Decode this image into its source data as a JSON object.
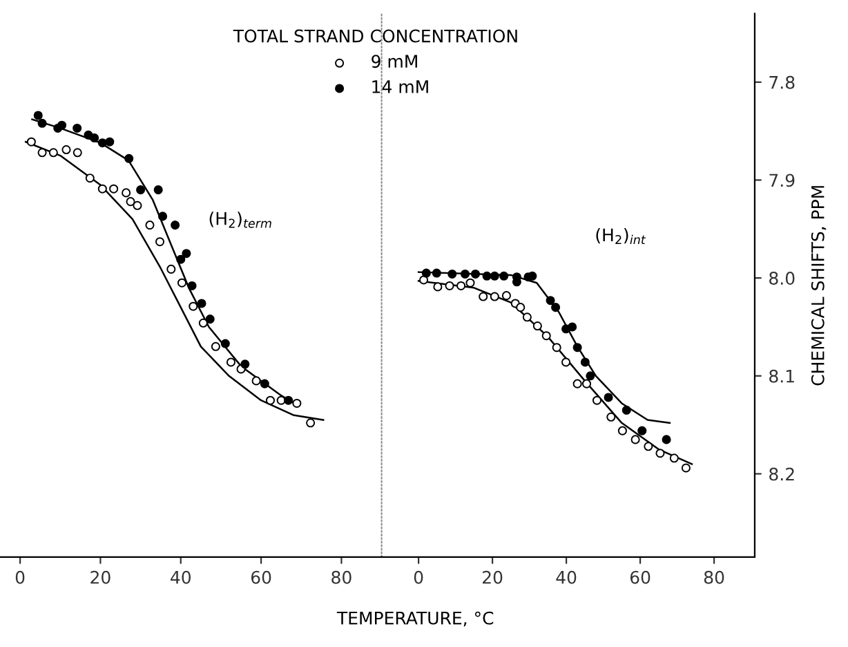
{
  "chart_data": [
    {
      "type": "scatter",
      "xlabel": "TEMPERATURE, °C",
      "legend_title": "TOTAL STRAND CONCENTRATION",
      "legend": "top right",
      "marker": "circle",
      "tick_labels": "x",
      "xlim": [
        -5,
        90
      ],
      "xticks": [
        0,
        20,
        40,
        60,
        80
      ],
      "ylim": [
        8.285,
        7.73
      ],
      "yticks": [
        7.8,
        7.9,
        8.0,
        8.1,
        8.2
      ],
      "annotations": [
        "(H$_{2}$)$_{term}$"
      ],
      "series": [
        {
          "name": "9 mM",
          "color": "#ffffff",
          "x": [
            2.8,
            5.5,
            8.3,
            11.5,
            14.3,
            17.4,
            20.5,
            23.3,
            26.4,
            27.5,
            29.2,
            32.3,
            34.8,
            37.6,
            40.3,
            43.1,
            45.6,
            48.7,
            52.5,
            55,
            58.8,
            62.3,
            65,
            68.9,
            72.3
          ],
          "values": [
            7.861,
            7.872,
            7.872,
            7.869,
            7.872,
            7.898,
            7.909,
            7.909,
            7.913,
            7.922,
            7.926,
            7.946,
            7.963,
            7.991,
            8.005,
            8.029,
            8.046,
            8.07,
            8.086,
            8.093,
            8.105,
            8.125,
            8.125,
            8.128,
            8.148
          ]
        },
        {
          "name": "14 mM",
          "color": "#000000",
          "x": [
            4.5,
            5.5,
            9.4,
            10.4,
            14.2,
            17,
            18.5,
            20.5,
            22.3,
            27.1,
            30,
            34.4,
            35.5,
            38.6,
            40,
            41.4,
            42.8,
            45.2,
            47.3,
            51.1,
            56,
            60.9,
            66.8
          ],
          "values": [
            7.834,
            7.842,
            7.847,
            7.844,
            7.847,
            7.854,
            7.857,
            7.862,
            7.861,
            7.878,
            7.91,
            7.91,
            7.937,
            7.946,
            7.981,
            7.975,
            8.008,
            8.026,
            8.042,
            8.067,
            8.088,
            8.108,
            8.125
          ]
        },
        {
          "type": "line",
          "marker": "none",
          "color": "#000000",
          "x": [
            1.4,
            10,
            20,
            28,
            35,
            40,
            45,
            52,
            60,
            68,
            75.5
          ],
          "values": [
            7.861,
            7.875,
            7.905,
            7.94,
            7.99,
            8.03,
            8.07,
            8.1,
            8.125,
            8.14,
            8.145
          ]
        },
        {
          "type": "line",
          "marker": "none",
          "color": "#000000",
          "x": [
            3,
            10,
            20,
            27,
            33,
            38,
            42,
            47,
            55,
            65,
            69
          ],
          "values": [
            7.838,
            7.847,
            7.862,
            7.88,
            7.92,
            7.97,
            8.01,
            8.05,
            8.09,
            8.12,
            8.13
          ]
        }
      ]
    },
    {
      "type": "scatter",
      "ylabel": "CHEMICAL SHIFTS, PPM",
      "marker": "circle",
      "xlim": [
        -10,
        91
      ],
      "xticks": [
        0,
        20,
        40,
        60,
        80
      ],
      "ylim": [
        8.285,
        7.73
      ],
      "yticks": [
        7.8,
        7.9,
        {
          "value": 8.0,
          "label": "8.0"
        },
        8.1,
        8.2
      ],
      "annotations": [
        "(H$_{2}$)$_{int}$"
      ],
      "series": [
        {
          "color": "#ffffff",
          "x": [
            1.4,
            5.2,
            8.4,
            11.5,
            14,
            17.5,
            20.6,
            23.8,
            26.2,
            27.6,
            29.4,
            32.2,
            34.6,
            37.4,
            39.9,
            43,
            45.5,
            48.3,
            52.1,
            55.2,
            58.7,
            62.2,
            65.4,
            69.2,
            72.4
          ],
          "values": [
            8.002,
            8.009,
            8.008,
            8.008,
            8.005,
            8.019,
            8.019,
            8.018,
            8.026,
            8.03,
            8.04,
            8.049,
            8.059,
            8.071,
            8.086,
            8.108,
            8.108,
            8.125,
            8.142,
            8.156,
            8.165,
            8.172,
            8.179,
            8.184,
            8.194
          ]
        },
        {
          "color": "#000000",
          "x": [
            2.1,
            4.9,
            9.1,
            12.6,
            15.4,
            18.5,
            20.6,
            23.1,
            26.6,
            26.6,
            29.7,
            30.8,
            35.7,
            37.1,
            39.9,
            41.6,
            43,
            45.1,
            46.5,
            51.4,
            56.3,
            60.5,
            67.1
          ],
          "values": [
            7.995,
            7.995,
            7.996,
            7.996,
            7.996,
            7.998,
            7.998,
            7.998,
            7.999,
            8.004,
            7.999,
            7.998,
            8.023,
            8.03,
            8.052,
            8.05,
            8.071,
            8.086,
            8.1,
            8.122,
            8.135,
            8.156,
            8.165
          ]
        },
        {
          "type": "line",
          "marker": "none",
          "color": "#000000",
          "x": [
            0,
            15,
            25,
            35,
            45,
            55,
            65,
            74
          ],
          "values": [
            8.003,
            8.01,
            8.025,
            8.06,
            8.105,
            8.148,
            8.175,
            8.19
          ]
        },
        {
          "type": "line",
          "marker": "none",
          "color": "#000000",
          "x": [
            0,
            25,
            32,
            38,
            43,
            48,
            55,
            62,
            68
          ],
          "values": [
            7.994,
            7.997,
            8.005,
            8.035,
            8.07,
            8.1,
            8.128,
            8.145,
            8.148
          ]
        }
      ]
    }
  ]
}
